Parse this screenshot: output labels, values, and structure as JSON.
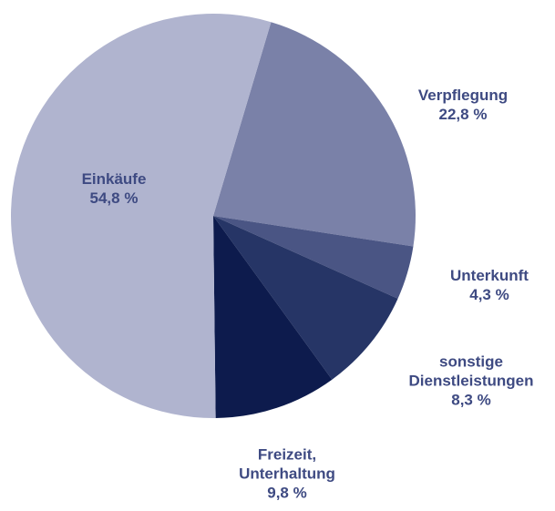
{
  "chart_data": {
    "type": "pie",
    "categories": [
      "Verpflegung",
      "Unterkunft",
      "sonstige\nDienstleistungen",
      "Freizeit,\nUnterhaltung",
      "Einkäufe"
    ],
    "values": [
      22.8,
      4.3,
      8.3,
      9.8,
      54.8
    ],
    "value_labels": [
      "22,8 %",
      "4,3 %",
      "8,3 %",
      "9,8 %",
      "54,8 %"
    ],
    "colors": [
      "#7a81a8",
      "#4a5584",
      "#263566",
      "#0d1b4d",
      "#b0b4cf"
    ]
  }
}
